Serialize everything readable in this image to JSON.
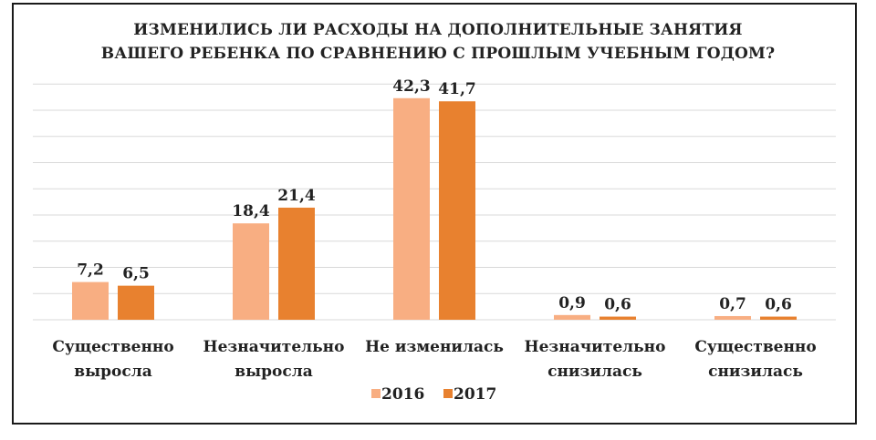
{
  "chart_data": {
    "type": "bar",
    "title_lines": [
      "ИЗМЕНИЛИСЬ ЛИ РАСХОДЫ НА ДОПОЛНИТЕЛЬНЫЕ ЗАНЯТИЯ",
      "ВАШЕГО РЕБЕНКА ПО СРАВНЕНИЮ С ПРОШЛЫМ УЧЕБНЫМ ГОДОМ?"
    ],
    "categories": [
      [
        "Существенно",
        "выросла"
      ],
      [
        "Незначительно",
        "выросла"
      ],
      [
        "Не изменилась"
      ],
      [
        "Незначительно",
        "снизилась"
      ],
      [
        "Существенно",
        "снизилась"
      ]
    ],
    "series": [
      {
        "name": "2016",
        "color": "#f8ae82",
        "values": [
          7.2,
          18.4,
          42.3,
          0.9,
          0.7
        ],
        "labels": [
          "7,2",
          "18,4",
          "42,3",
          "0,9",
          "0,7"
        ]
      },
      {
        "name": "2017",
        "color": "#e8812f",
        "values": [
          6.5,
          21.4,
          41.7,
          0.6,
          0.6
        ],
        "labels": [
          "6,5",
          "21,4",
          "41,7",
          "0,6",
          "0,6"
        ]
      }
    ],
    "ylim": [
      0,
      45
    ],
    "ygrid_step": 5,
    "grid": true,
    "legend_position": "bottom"
  }
}
